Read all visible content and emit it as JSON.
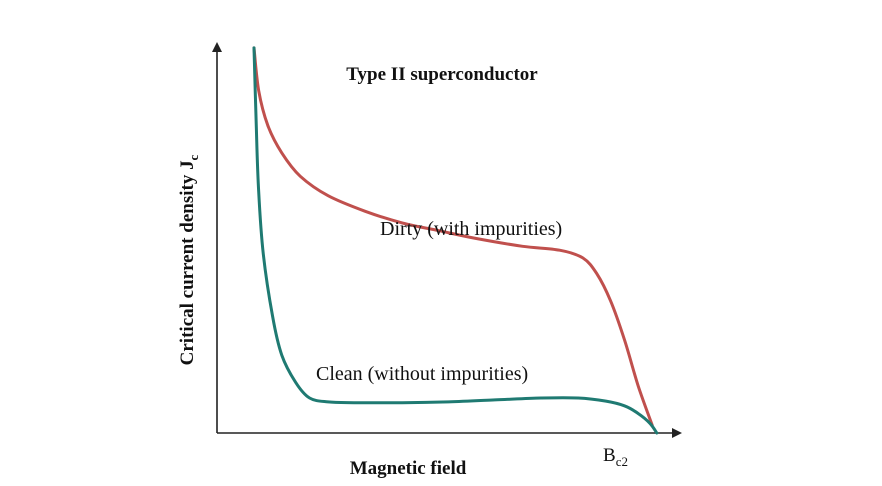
{
  "chart_data": {
    "type": "line",
    "title": "Type II superconductor",
    "xlabel": "Magnetic field",
    "ylabel": "Critical current density J",
    "ylabel_sub": "c",
    "x_tick_label": {
      "main": "B",
      "sub": "c2"
    },
    "xlim": [
      0,
      1
    ],
    "ylim": [
      0,
      1
    ],
    "grid": false,
    "legend": "none",
    "series": [
      {
        "name": "Dirty (with impurities)",
        "color": "#c0504d",
        "x": [
          0.08,
          0.09,
          0.11,
          0.14,
          0.18,
          0.24,
          0.32,
          0.4,
          0.48,
          0.56,
          0.66,
          0.74,
          0.79,
          0.82,
          0.85,
          0.88,
          0.91,
          0.94
        ],
        "y": [
          0.99,
          0.88,
          0.79,
          0.72,
          0.66,
          0.61,
          0.57,
          0.54,
          0.52,
          0.5,
          0.48,
          0.47,
          0.45,
          0.41,
          0.34,
          0.24,
          0.12,
          0.02
        ]
      },
      {
        "name": "Clean (without impurities)",
        "color": "#1f7a72",
        "x": [
          0.08,
          0.085,
          0.09,
          0.1,
          0.12,
          0.14,
          0.17,
          0.2,
          0.24,
          0.3,
          0.4,
          0.5,
          0.6,
          0.7,
          0.78,
          0.84,
          0.88,
          0.91,
          0.935,
          0.95
        ],
        "y": [
          0.99,
          0.78,
          0.62,
          0.46,
          0.3,
          0.2,
          0.13,
          0.09,
          0.08,
          0.078,
          0.078,
          0.08,
          0.085,
          0.09,
          0.09,
          0.082,
          0.07,
          0.05,
          0.025,
          0.0
        ]
      }
    ]
  }
}
